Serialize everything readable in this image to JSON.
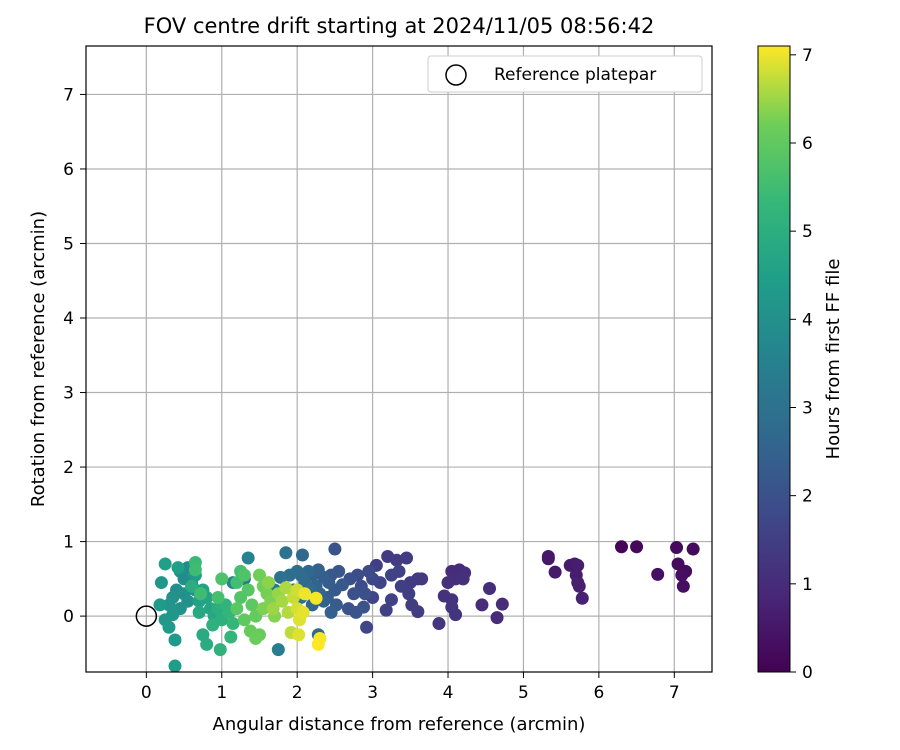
{
  "chart_data": {
    "type": "scatter",
    "title": "FOV centre drift starting at 2024/11/05 08:56:42",
    "xlabel": "Angular distance from reference (arcmin)",
    "ylabel": "Rotation from reference (arcmin)",
    "xlim": [
      -0.8,
      7.5
    ],
    "ylim": [
      -0.75,
      7.65
    ],
    "xticks": [
      0,
      1,
      2,
      3,
      4,
      5,
      6,
      7
    ],
    "yticks": [
      0,
      1,
      2,
      3,
      4,
      5,
      6,
      7
    ],
    "grid": true,
    "legend": {
      "placement": "top-right",
      "entries": [
        {
          "label": "Reference platepar",
          "marker": "open-circle",
          "x": 0,
          "y": 0
        }
      ]
    },
    "colorbar": {
      "label": "Hours from first FF file",
      "colormap": "viridis",
      "range": [
        0,
        7.1
      ],
      "ticks": [
        0,
        1,
        2,
        3,
        4,
        5,
        6,
        7
      ]
    },
    "points": [
      {
        "x": 6.3,
        "y": 0.93,
        "c": 0.1
      },
      {
        "x": 6.5,
        "y": 0.93,
        "c": 0.15
      },
      {
        "x": 7.03,
        "y": 0.92,
        "c": 0.2
      },
      {
        "x": 7.25,
        "y": 0.9,
        "c": 0.2
      },
      {
        "x": 7.05,
        "y": 0.7,
        "c": 0.25
      },
      {
        "x": 7.15,
        "y": 0.6,
        "c": 0.25
      },
      {
        "x": 7.1,
        "y": 0.55,
        "c": 0.3
      },
      {
        "x": 7.12,
        "y": 0.4,
        "c": 0.3
      },
      {
        "x": 6.78,
        "y": 0.56,
        "c": 0.35
      },
      {
        "x": 5.33,
        "y": 0.8,
        "c": 0.5
      },
      {
        "x": 5.33,
        "y": 0.77,
        "c": 0.5
      },
      {
        "x": 5.42,
        "y": 0.59,
        "c": 0.55
      },
      {
        "x": 5.62,
        "y": 0.68,
        "c": 0.6
      },
      {
        "x": 5.68,
        "y": 0.7,
        "c": 0.6
      },
      {
        "x": 5.72,
        "y": 0.68,
        "c": 0.65
      },
      {
        "x": 5.7,
        "y": 0.55,
        "c": 0.65
      },
      {
        "x": 5.72,
        "y": 0.45,
        "c": 0.7
      },
      {
        "x": 5.74,
        "y": 0.4,
        "c": 0.7
      },
      {
        "x": 5.78,
        "y": 0.24,
        "c": 0.75
      },
      {
        "x": 4.15,
        "y": 0.62,
        "c": 1.0
      },
      {
        "x": 4.05,
        "y": 0.6,
        "c": 1.0
      },
      {
        "x": 4.22,
        "y": 0.58,
        "c": 1.05
      },
      {
        "x": 4.1,
        "y": 0.5,
        "c": 1.05
      },
      {
        "x": 4.2,
        "y": 0.5,
        "c": 1.1
      },
      {
        "x": 4.0,
        "y": 0.45,
        "c": 1.1
      },
      {
        "x": 3.95,
        "y": 0.27,
        "c": 1.15
      },
      {
        "x": 4.05,
        "y": 0.22,
        "c": 1.15
      },
      {
        "x": 4.1,
        "y": 0.02,
        "c": 1.2
      },
      {
        "x": 4.05,
        "y": 0.12,
        "c": 1.2
      },
      {
        "x": 3.88,
        "y": -0.1,
        "c": 1.25
      },
      {
        "x": 4.45,
        "y": 0.15,
        "c": 1.0
      },
      {
        "x": 4.55,
        "y": 0.37,
        "c": 1.05
      },
      {
        "x": 4.65,
        "y": -0.02,
        "c": 1.0
      },
      {
        "x": 4.72,
        "y": 0.16,
        "c": 1.0
      },
      {
        "x": 3.2,
        "y": 0.8,
        "c": 1.4
      },
      {
        "x": 3.32,
        "y": 0.75,
        "c": 1.45
      },
      {
        "x": 3.45,
        "y": 0.78,
        "c": 1.4
      },
      {
        "x": 3.05,
        "y": 0.68,
        "c": 1.5
      },
      {
        "x": 3.6,
        "y": 0.5,
        "c": 1.35
      },
      {
        "x": 3.5,
        "y": 0.45,
        "c": 1.4
      },
      {
        "x": 3.65,
        "y": 0.5,
        "c": 1.35
      },
      {
        "x": 3.38,
        "y": 0.4,
        "c": 1.5
      },
      {
        "x": 3.48,
        "y": 0.3,
        "c": 1.5
      },
      {
        "x": 3.52,
        "y": 0.15,
        "c": 1.45
      },
      {
        "x": 3.6,
        "y": 0.06,
        "c": 1.45
      },
      {
        "x": 3.25,
        "y": 0.22,
        "c": 1.6
      },
      {
        "x": 3.18,
        "y": 0.08,
        "c": 1.6
      },
      {
        "x": 3.0,
        "y": 0.25,
        "c": 1.7
      },
      {
        "x": 2.92,
        "y": -0.15,
        "c": 1.7
      },
      {
        "x": 3.1,
        "y": 0.45,
        "c": 1.65
      },
      {
        "x": 3.25,
        "y": 0.55,
        "c": 1.6
      },
      {
        "x": 3.35,
        "y": 0.6,
        "c": 1.55
      },
      {
        "x": 3.0,
        "y": 0.5,
        "c": 1.75
      },
      {
        "x": 2.8,
        "y": 0.55,
        "c": 1.9
      },
      {
        "x": 2.95,
        "y": 0.6,
        "c": 1.85
      },
      {
        "x": 2.7,
        "y": 0.5,
        "c": 1.95
      },
      {
        "x": 2.85,
        "y": 0.4,
        "c": 1.9
      },
      {
        "x": 2.75,
        "y": 0.3,
        "c": 2.0
      },
      {
        "x": 2.68,
        "y": 0.1,
        "c": 2.0
      },
      {
        "x": 2.78,
        "y": 0.05,
        "c": 2.05
      },
      {
        "x": 2.88,
        "y": 0.12,
        "c": 2.05
      },
      {
        "x": 2.9,
        "y": 0.3,
        "c": 1.95
      },
      {
        "x": 2.5,
        "y": 0.9,
        "c": 2.1
      },
      {
        "x": 2.55,
        "y": 0.6,
        "c": 2.15
      },
      {
        "x": 2.45,
        "y": 0.55,
        "c": 2.2
      },
      {
        "x": 2.6,
        "y": 0.42,
        "c": 2.2
      },
      {
        "x": 2.5,
        "y": 0.35,
        "c": 2.25
      },
      {
        "x": 2.4,
        "y": 0.25,
        "c": 2.3
      },
      {
        "x": 2.52,
        "y": 0.15,
        "c": 2.3
      },
      {
        "x": 2.42,
        "y": 0.45,
        "c": 2.35
      },
      {
        "x": 2.35,
        "y": 0.52,
        "c": 2.4
      },
      {
        "x": 2.28,
        "y": 0.62,
        "c": 2.45
      },
      {
        "x": 2.2,
        "y": 0.55,
        "c": 2.5
      },
      {
        "x": 2.25,
        "y": 0.4,
        "c": 2.55
      },
      {
        "x": 2.3,
        "y": 0.3,
        "c": 2.6
      },
      {
        "x": 2.2,
        "y": 0.15,
        "c": 2.6
      },
      {
        "x": 2.28,
        "y": -0.25,
        "c": 2.7
      },
      {
        "x": 2.15,
        "y": 0.6,
        "c": 2.65
      },
      {
        "x": 2.07,
        "y": 0.82,
        "c": 2.7
      },
      {
        "x": 2.1,
        "y": 0.45,
        "c": 2.75
      },
      {
        "x": 2.05,
        "y": 0.55,
        "c": 2.8
      },
      {
        "x": 2.0,
        "y": 0.6,
        "c": 2.85
      },
      {
        "x": 1.9,
        "y": 0.55,
        "c": 2.9
      },
      {
        "x": 1.85,
        "y": 0.85,
        "c": 3.0
      },
      {
        "x": 2.35,
        "y": 0.2,
        "c": 2.5
      },
      {
        "x": 2.45,
        "y": 0.05,
        "c": 2.4
      },
      {
        "x": 1.78,
        "y": 0.52,
        "c": 3.0
      },
      {
        "x": 2.18,
        "y": 0.35,
        "c": 2.8
      },
      {
        "x": 2.05,
        "y": 0.25,
        "c": 2.9
      },
      {
        "x": 1.95,
        "y": 0.35,
        "c": 3.0
      },
      {
        "x": 1.75,
        "y": -0.45,
        "c": 3.4
      },
      {
        "x": 1.35,
        "y": 0.78,
        "c": 3.5
      },
      {
        "x": 1.3,
        "y": 0.5,
        "c": 3.3
      },
      {
        "x": 1.7,
        "y": 0.35,
        "c": 3.2
      },
      {
        "x": 1.15,
        "y": 0.45,
        "c": 3.6
      },
      {
        "x": 0.55,
        "y": 0.65,
        "c": 3.8
      },
      {
        "x": 0.45,
        "y": 0.6,
        "c": 3.85
      },
      {
        "x": 0.5,
        "y": 0.5,
        "c": 3.9
      },
      {
        "x": 0.6,
        "y": 0.45,
        "c": 3.9
      },
      {
        "x": 0.4,
        "y": 0.35,
        "c": 3.95
      },
      {
        "x": 0.5,
        "y": 0.3,
        "c": 4.0
      },
      {
        "x": 0.55,
        "y": 0.2,
        "c": 4.0
      },
      {
        "x": 0.35,
        "y": 0.25,
        "c": 4.05
      },
      {
        "x": 0.45,
        "y": 0.1,
        "c": 4.1
      },
      {
        "x": 0.65,
        "y": 0.35,
        "c": 4.1
      },
      {
        "x": 0.3,
        "y": 0.15,
        "c": 4.15
      },
      {
        "x": 0.2,
        "y": 0.45,
        "c": 4.2
      },
      {
        "x": 0.25,
        "y": -0.05,
        "c": 4.25
      },
      {
        "x": 0.35,
        "y": 0.02,
        "c": 4.2
      },
      {
        "x": 0.3,
        "y": -0.15,
        "c": 4.3
      },
      {
        "x": 0.38,
        "y": -0.32,
        "c": 4.3
      },
      {
        "x": 0.38,
        "y": -0.67,
        "c": 4.4
      },
      {
        "x": 0.18,
        "y": 0.15,
        "c": 4.35
      },
      {
        "x": 0.25,
        "y": 0.7,
        "c": 4.5
      },
      {
        "x": 0.42,
        "y": 0.65,
        "c": 4.5
      },
      {
        "x": 0.65,
        "y": 0.55,
        "c": 4.4
      },
      {
        "x": 0.7,
        "y": 0.2,
        "c": 4.55
      },
      {
        "x": 0.75,
        "y": 0.35,
        "c": 4.6
      },
      {
        "x": 0.8,
        "y": 0.25,
        "c": 4.65
      },
      {
        "x": 0.85,
        "y": 0.1,
        "c": 4.7
      },
      {
        "x": 0.9,
        "y": 0.0,
        "c": 4.75
      },
      {
        "x": 0.7,
        "y": 0.05,
        "c": 4.8
      },
      {
        "x": 0.75,
        "y": -0.25,
        "c": 4.85
      },
      {
        "x": 0.8,
        "y": -0.38,
        "c": 4.9
      },
      {
        "x": 0.6,
        "y": 0.4,
        "c": 4.95
      },
      {
        "x": 0.95,
        "y": 0.1,
        "c": 5.0
      },
      {
        "x": 1.0,
        "y": -0.05,
        "c": 5.05
      },
      {
        "x": 0.88,
        "y": -0.12,
        "c": 5.1
      },
      {
        "x": 0.98,
        "y": -0.45,
        "c": 5.15
      },
      {
        "x": 1.05,
        "y": 0.15,
        "c": 5.2
      },
      {
        "x": 1.1,
        "y": 0.05,
        "c": 5.25
      },
      {
        "x": 1.15,
        "y": -0.1,
        "c": 5.3
      },
      {
        "x": 1.12,
        "y": -0.28,
        "c": 5.3
      },
      {
        "x": 0.65,
        "y": 0.72,
        "c": 5.4
      },
      {
        "x": 0.65,
        "y": 0.62,
        "c": 5.5
      },
      {
        "x": 0.72,
        "y": 0.3,
        "c": 5.5
      },
      {
        "x": 0.95,
        "y": 0.25,
        "c": 5.6
      },
      {
        "x": 1.0,
        "y": 0.5,
        "c": 5.7
      },
      {
        "x": 1.25,
        "y": 0.6,
        "c": 5.6
      },
      {
        "x": 1.2,
        "y": 0.45,
        "c": 5.55
      },
      {
        "x": 1.3,
        "y": 0.55,
        "c": 5.75
      },
      {
        "x": 1.25,
        "y": 0.25,
        "c": 5.8
      },
      {
        "x": 1.35,
        "y": 0.35,
        "c": 5.85
      },
      {
        "x": 1.2,
        "y": 0.1,
        "c": 5.9
      },
      {
        "x": 1.4,
        "y": 0.15,
        "c": 5.95
      },
      {
        "x": 1.3,
        "y": -0.05,
        "c": 6.0
      },
      {
        "x": 1.45,
        "y": 0.0,
        "c": 6.05
      },
      {
        "x": 1.38,
        "y": -0.2,
        "c": 6.1
      },
      {
        "x": 1.5,
        "y": -0.25,
        "c": 6.1
      },
      {
        "x": 1.45,
        "y": -0.3,
        "c": 6.15
      },
      {
        "x": 1.5,
        "y": 0.55,
        "c": 6.2
      },
      {
        "x": 1.55,
        "y": 0.4,
        "c": 6.2
      },
      {
        "x": 1.6,
        "y": 0.3,
        "c": 6.25
      },
      {
        "x": 1.65,
        "y": 0.2,
        "c": 6.3
      },
      {
        "x": 1.55,
        "y": 0.1,
        "c": 6.3
      },
      {
        "x": 1.7,
        "y": 0.0,
        "c": 6.35
      },
      {
        "x": 1.62,
        "y": 0.45,
        "c": 6.4
      },
      {
        "x": 1.75,
        "y": 0.3,
        "c": 6.45
      },
      {
        "x": 1.68,
        "y": 0.1,
        "c": 6.5
      },
      {
        "x": 1.8,
        "y": 0.2,
        "c": 6.55
      },
      {
        "x": 1.85,
        "y": 0.38,
        "c": 6.6
      },
      {
        "x": 1.88,
        "y": 0.05,
        "c": 6.65
      },
      {
        "x": 1.92,
        "y": -0.22,
        "c": 6.7
      },
      {
        "x": 1.95,
        "y": 0.25,
        "c": 6.75
      },
      {
        "x": 2.0,
        "y": 0.35,
        "c": 6.8
      },
      {
        "x": 2.0,
        "y": 0.1,
        "c": 6.85
      },
      {
        "x": 2.03,
        "y": -0.05,
        "c": 6.9
      },
      {
        "x": 2.02,
        "y": -0.25,
        "c": 6.9
      },
      {
        "x": 2.08,
        "y": 0.05,
        "c": 6.95
      },
      {
        "x": 2.1,
        "y": 0.3,
        "c": 7.0
      },
      {
        "x": 2.25,
        "y": 0.24,
        "c": 7.05
      },
      {
        "x": 2.3,
        "y": -0.3,
        "c": 7.05
      },
      {
        "x": 2.28,
        "y": -0.38,
        "c": 7.1
      }
    ]
  }
}
